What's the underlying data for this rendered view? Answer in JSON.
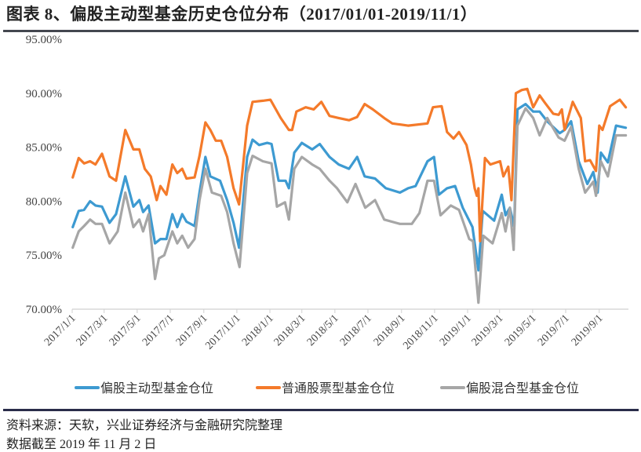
{
  "title": "图表 8、偏股主动型基金历史仓位分布（2017/01/01-2019/11/1）",
  "source": "资料来源：天软，兴业证券经济与金融研究院整理",
  "note": "数据截至 2019 年 11 月 2 日",
  "chart_data": {
    "type": "line",
    "title": "图表 8、偏股主动型基金历史仓位分布（2017/01/01-2019/11/1）",
    "xlabel": "",
    "ylabel": "",
    "xlim": [
      "2017-01-01",
      "2019-10-22"
    ],
    "ylim": [
      70,
      95
    ],
    "y_ticks": [
      "70.00%",
      "75.00%",
      "80.00%",
      "85.00%",
      "90.00%",
      "95.00%"
    ],
    "y_tick_values": [
      70,
      75,
      80,
      85,
      90,
      95
    ],
    "x_ticks": [
      "2017/1/1",
      "2017/3/1",
      "2017/5/1",
      "2017/7/1",
      "2017/9/1",
      "2017/11/1",
      "2018/1/1",
      "2018/3/1",
      "2018/5/1",
      "2018/7/1",
      "2018/9/1",
      "2018/11/1",
      "2019/1/1",
      "2019/3/1",
      "2019/5/1",
      "2019/7/1",
      "2019/9/1"
    ],
    "x_tick_dates": [
      "2017-01-01",
      "2017-03-01",
      "2017-05-01",
      "2017-07-01",
      "2017-09-01",
      "2017-11-01",
      "2018-01-01",
      "2018-03-01",
      "2018-05-01",
      "2018-07-01",
      "2018-09-01",
      "2018-11-01",
      "2019-01-01",
      "2019-03-01",
      "2019-05-01",
      "2019-07-01",
      "2019-09-01"
    ],
    "grid": false,
    "legend_position": "bottom",
    "series": [
      {
        "name": "偏股主动型基金仓位",
        "color": "#3d9ad1",
        "points": [
          [
            "2017-01-02",
            77.6
          ],
          [
            "2017-01-13",
            79.1
          ],
          [
            "2017-01-23",
            79.2
          ],
          [
            "2017-02-03",
            80.0
          ],
          [
            "2017-02-13",
            79.6
          ],
          [
            "2017-02-25",
            79.5
          ],
          [
            "2017-03-11",
            78.0
          ],
          [
            "2017-03-23",
            78.8
          ],
          [
            "2017-04-09",
            82.3
          ],
          [
            "2017-04-24",
            79.5
          ],
          [
            "2017-05-05",
            80.1
          ],
          [
            "2017-05-12",
            79.0
          ],
          [
            "2017-05-22",
            79.6
          ],
          [
            "2017-06-03",
            76.1
          ],
          [
            "2017-06-13",
            76.5
          ],
          [
            "2017-06-24",
            76.5
          ],
          [
            "2017-07-05",
            78.8
          ],
          [
            "2017-07-14",
            77.6
          ],
          [
            "2017-07-23",
            78.8
          ],
          [
            "2017-07-31",
            78.1
          ],
          [
            "2017-08-15",
            77.7
          ],
          [
            "2017-08-24",
            80.8
          ],
          [
            "2017-09-04",
            84.1
          ],
          [
            "2017-09-13",
            82.3
          ],
          [
            "2017-10-01",
            81.9
          ],
          [
            "2017-10-14",
            80.1
          ],
          [
            "2017-10-26",
            78.0
          ],
          [
            "2017-11-05",
            75.7
          ],
          [
            "2017-11-20",
            84.1
          ],
          [
            "2017-11-30",
            85.7
          ],
          [
            "2017-12-12",
            85.2
          ],
          [
            "2017-12-27",
            85.4
          ],
          [
            "2018-01-04",
            85.3
          ],
          [
            "2018-01-17",
            81.9
          ],
          [
            "2018-01-30",
            81.9
          ],
          [
            "2018-02-05",
            81.2
          ],
          [
            "2018-02-15",
            84.5
          ],
          [
            "2018-03-01",
            85.4
          ],
          [
            "2018-03-20",
            84.8
          ],
          [
            "2018-04-03",
            85.3
          ],
          [
            "2018-04-21",
            84.1
          ],
          [
            "2018-05-08",
            83.4
          ],
          [
            "2018-05-27",
            83.0
          ],
          [
            "2018-06-11",
            84.1
          ],
          [
            "2018-06-25",
            82.3
          ],
          [
            "2018-07-14",
            82.1
          ],
          [
            "2018-08-03",
            81.2
          ],
          [
            "2018-08-29",
            80.8
          ],
          [
            "2018-09-13",
            81.2
          ],
          [
            "2018-09-27",
            81.4
          ],
          [
            "2018-10-19",
            83.7
          ],
          [
            "2018-10-31",
            84.1
          ],
          [
            "2018-11-09",
            80.6
          ],
          [
            "2018-11-24",
            81.2
          ],
          [
            "2018-12-09",
            81.4
          ],
          [
            "2018-12-23",
            79.4
          ],
          [
            "2019-01-10",
            77.6
          ],
          [
            "2019-01-21",
            73.6
          ],
          [
            "2019-01-29",
            79.1
          ],
          [
            "2019-02-19",
            78.2
          ],
          [
            "2019-03-05",
            80.6
          ],
          [
            "2019-03-12",
            78.7
          ],
          [
            "2019-03-20",
            79.4
          ],
          [
            "2019-03-28",
            77.6
          ],
          [
            "2019-04-03",
            88.5
          ],
          [
            "2019-04-18",
            89.0
          ],
          [
            "2019-05-02",
            88.3
          ],
          [
            "2019-05-14",
            88.3
          ],
          [
            "2019-05-28",
            87.4
          ],
          [
            "2019-06-20",
            86.3
          ],
          [
            "2019-06-29",
            86.6
          ],
          [
            "2019-07-11",
            87.4
          ],
          [
            "2019-07-25",
            83.7
          ],
          [
            "2019-08-10",
            81.6
          ],
          [
            "2019-08-21",
            82.7
          ],
          [
            "2019-08-29",
            80.8
          ],
          [
            "2019-09-04",
            84.5
          ],
          [
            "2019-09-17",
            83.6
          ],
          [
            "2019-10-02",
            87.0
          ],
          [
            "2019-10-20",
            86.8
          ]
        ]
      },
      {
        "name": "普通股票型基金仓位",
        "color": "#f47a2a",
        "points": [
          [
            "2017-01-02",
            82.2
          ],
          [
            "2017-01-13",
            84.0
          ],
          [
            "2017-01-23",
            83.5
          ],
          [
            "2017-02-03",
            83.7
          ],
          [
            "2017-02-13",
            83.4
          ],
          [
            "2017-02-25",
            84.4
          ],
          [
            "2017-03-11",
            82.3
          ],
          [
            "2017-03-23",
            81.9
          ],
          [
            "2017-04-09",
            86.6
          ],
          [
            "2017-04-24",
            84.8
          ],
          [
            "2017-05-05",
            84.8
          ],
          [
            "2017-05-15",
            83.0
          ],
          [
            "2017-05-26",
            82.3
          ],
          [
            "2017-06-06",
            80.1
          ],
          [
            "2017-06-13",
            81.4
          ],
          [
            "2017-06-24",
            80.6
          ],
          [
            "2017-07-05",
            83.4
          ],
          [
            "2017-07-14",
            82.6
          ],
          [
            "2017-07-23",
            83.0
          ],
          [
            "2017-07-31",
            82.1
          ],
          [
            "2017-08-15",
            82.2
          ],
          [
            "2017-08-24",
            84.2
          ],
          [
            "2017-09-04",
            87.3
          ],
          [
            "2017-09-13",
            86.6
          ],
          [
            "2017-09-23",
            85.6
          ],
          [
            "2017-10-03",
            85.6
          ],
          [
            "2017-10-14",
            84.1
          ],
          [
            "2017-10-26",
            81.2
          ],
          [
            "2017-11-05",
            79.7
          ],
          [
            "2017-11-20",
            87.0
          ],
          [
            "2017-11-30",
            89.2
          ],
          [
            "2017-12-19",
            89.3
          ],
          [
            "2018-01-02",
            89.4
          ],
          [
            "2018-01-21",
            87.7
          ],
          [
            "2018-02-05",
            86.6
          ],
          [
            "2018-02-11",
            86.6
          ],
          [
            "2018-02-19",
            88.3
          ],
          [
            "2018-03-08",
            88.7
          ],
          [
            "2018-03-23",
            88.5
          ],
          [
            "2018-04-06",
            89.2
          ],
          [
            "2018-04-21",
            87.9
          ],
          [
            "2018-05-08",
            87.7
          ],
          [
            "2018-05-27",
            87.5
          ],
          [
            "2018-06-11",
            87.8
          ],
          [
            "2018-06-25",
            89.0
          ],
          [
            "2018-07-10",
            88.5
          ],
          [
            "2018-07-31",
            87.7
          ],
          [
            "2018-08-15",
            87.2
          ],
          [
            "2018-09-13",
            87.0
          ],
          [
            "2018-10-19",
            87.2
          ],
          [
            "2018-10-29",
            88.7
          ],
          [
            "2018-11-14",
            88.8
          ],
          [
            "2018-11-24",
            86.4
          ],
          [
            "2018-12-06",
            85.8
          ],
          [
            "2018-12-16",
            86.4
          ],
          [
            "2018-12-30",
            85.2
          ],
          [
            "2019-01-07",
            83.4
          ],
          [
            "2019-01-14",
            81.2
          ],
          [
            "2019-01-18",
            80.5
          ],
          [
            "2019-01-21",
            81.2
          ],
          [
            "2019-01-24",
            76.3
          ],
          [
            "2019-02-02",
            84.0
          ],
          [
            "2019-02-12",
            83.4
          ],
          [
            "2019-03-02",
            83.7
          ],
          [
            "2019-03-08",
            82.3
          ],
          [
            "2019-03-17",
            83.2
          ],
          [
            "2019-03-23",
            80.1
          ],
          [
            "2019-03-31",
            90.0
          ],
          [
            "2019-04-11",
            90.3
          ],
          [
            "2019-04-21",
            90.4
          ],
          [
            "2019-05-02",
            88.7
          ],
          [
            "2019-05-14",
            89.8
          ],
          [
            "2019-05-24",
            89.1
          ],
          [
            "2019-06-08",
            88.1
          ],
          [
            "2019-06-18",
            88.0
          ],
          [
            "2019-06-24",
            88.5
          ],
          [
            "2019-06-29",
            86.6
          ],
          [
            "2019-07-14",
            89.2
          ],
          [
            "2019-07-29",
            87.7
          ],
          [
            "2019-08-06",
            83.7
          ],
          [
            "2019-08-15",
            83.8
          ],
          [
            "2019-08-26",
            82.8
          ],
          [
            "2019-09-01",
            87.0
          ],
          [
            "2019-09-07",
            86.6
          ],
          [
            "2019-09-21",
            88.8
          ],
          [
            "2019-10-09",
            89.4
          ],
          [
            "2019-10-20",
            88.7
          ]
        ]
      },
      {
        "name": "偏股混合型基金仓位",
        "color": "#a6a6a6",
        "points": [
          [
            "2017-01-02",
            75.7
          ],
          [
            "2017-01-13",
            77.2
          ],
          [
            "2017-01-23",
            77.7
          ],
          [
            "2017-02-03",
            78.3
          ],
          [
            "2017-02-13",
            77.9
          ],
          [
            "2017-02-25",
            77.9
          ],
          [
            "2017-03-11",
            76.1
          ],
          [
            "2017-03-26",
            77.2
          ],
          [
            "2017-04-09",
            80.8
          ],
          [
            "2017-04-24",
            77.6
          ],
          [
            "2017-05-05",
            78.3
          ],
          [
            "2017-05-12",
            77.2
          ],
          [
            "2017-05-22",
            78.8
          ],
          [
            "2017-06-03",
            72.8
          ],
          [
            "2017-06-10",
            74.7
          ],
          [
            "2017-06-20",
            75.0
          ],
          [
            "2017-07-05",
            77.2
          ],
          [
            "2017-07-14",
            76.1
          ],
          [
            "2017-07-23",
            76.8
          ],
          [
            "2017-08-03",
            75.7
          ],
          [
            "2017-08-15",
            76.5
          ],
          [
            "2017-08-24",
            80.1
          ],
          [
            "2017-09-04",
            83.0
          ],
          [
            "2017-09-16",
            80.8
          ],
          [
            "2017-10-03",
            80.5
          ],
          [
            "2017-10-14",
            79.0
          ],
          [
            "2017-10-26",
            76.1
          ],
          [
            "2017-11-06",
            73.9
          ],
          [
            "2017-11-20",
            82.6
          ],
          [
            "2017-11-30",
            84.2
          ],
          [
            "2017-12-19",
            83.7
          ],
          [
            "2018-01-04",
            83.5
          ],
          [
            "2018-01-14",
            79.5
          ],
          [
            "2018-01-29",
            79.9
          ],
          [
            "2018-02-05",
            78.3
          ],
          [
            "2018-02-15",
            83.0
          ],
          [
            "2018-03-01",
            84.1
          ],
          [
            "2018-03-20",
            83.4
          ],
          [
            "2018-04-03",
            83.0
          ],
          [
            "2018-04-21",
            81.9
          ],
          [
            "2018-05-05",
            81.2
          ],
          [
            "2018-05-24",
            79.9
          ],
          [
            "2018-06-08",
            81.6
          ],
          [
            "2018-06-26",
            79.4
          ],
          [
            "2018-07-14",
            80.1
          ],
          [
            "2018-07-31",
            78.3
          ],
          [
            "2018-08-29",
            77.9
          ],
          [
            "2018-09-20",
            77.9
          ],
          [
            "2018-10-04",
            78.9
          ],
          [
            "2018-10-19",
            81.9
          ],
          [
            "2018-10-31",
            81.9
          ],
          [
            "2018-11-12",
            78.7
          ],
          [
            "2018-12-01",
            79.6
          ],
          [
            "2018-12-16",
            79.2
          ],
          [
            "2019-01-04",
            76.5
          ],
          [
            "2019-01-11",
            76.3
          ],
          [
            "2019-01-21",
            70.6
          ],
          [
            "2019-01-30",
            76.8
          ],
          [
            "2019-02-16",
            76.1
          ],
          [
            "2019-03-05",
            78.9
          ],
          [
            "2019-03-12",
            77.2
          ],
          [
            "2019-03-20",
            79.4
          ],
          [
            "2019-03-27",
            75.5
          ],
          [
            "2019-04-03",
            87.0
          ],
          [
            "2019-04-18",
            88.6
          ],
          [
            "2019-05-02",
            87.7
          ],
          [
            "2019-05-14",
            86.1
          ],
          [
            "2019-05-28",
            87.7
          ],
          [
            "2019-06-18",
            85.9
          ],
          [
            "2019-06-29",
            85.6
          ],
          [
            "2019-07-11",
            86.9
          ],
          [
            "2019-07-25",
            83.0
          ],
          [
            "2019-08-06",
            80.8
          ],
          [
            "2019-08-21",
            81.8
          ],
          [
            "2019-08-26",
            80.5
          ],
          [
            "2019-09-04",
            83.7
          ],
          [
            "2019-09-17",
            82.3
          ],
          [
            "2019-10-02",
            86.1
          ],
          [
            "2019-10-20",
            86.1
          ]
        ]
      }
    ]
  }
}
